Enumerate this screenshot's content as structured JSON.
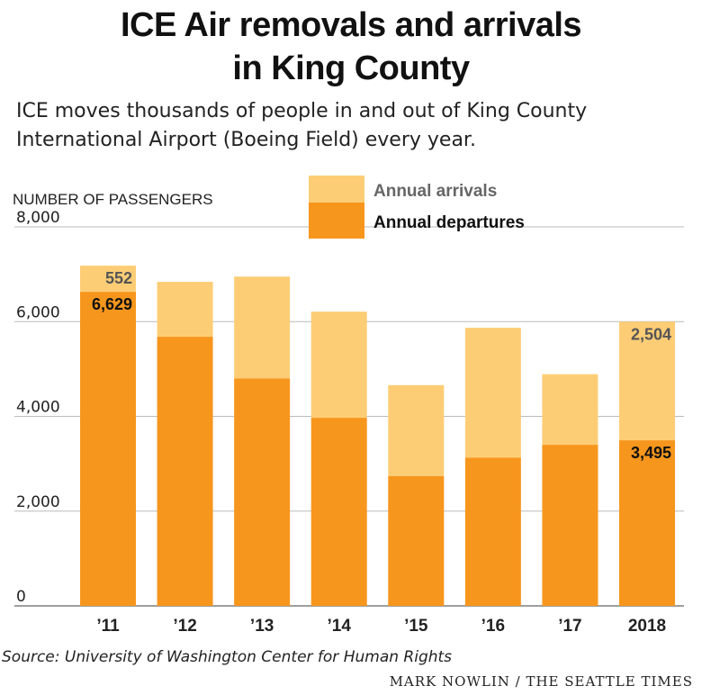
{
  "title_line1": "ICE Air removals and arrivals",
  "title_line2": "in King County",
  "subtitle_line1": "ICE moves thousands of people in and out of King County",
  "subtitle_line2": "International Airport (Boeing Field) every year.",
  "source": "Source: University of Washington Center for Human Rights",
  "credit": "MARK NOWLIN / THE SEATTLE TIMES",
  "colors": {
    "departures": "#F7961D",
    "arrivals": "#FDCD76",
    "grid": "#bbbbbb",
    "text": "#222222"
  },
  "chart_data": {
    "type": "bar",
    "stacked": true,
    "ylabel": "NUMBER OF PASSENGERS",
    "ylim": [
      0,
      8000
    ],
    "yticks": [
      0,
      2000,
      4000,
      6000,
      8000
    ],
    "ytick_labels": [
      "0",
      "2,000",
      "4,000",
      "6,000",
      "8,000"
    ],
    "categories": [
      "’11",
      "’12",
      "’13",
      "’14",
      "’15",
      "’16",
      "’17",
      "2018"
    ],
    "legend_position": "top-center",
    "series": [
      {
        "name": "Annual departures",
        "values": [
          6629,
          5680,
          4800,
          3970,
          2740,
          3130,
          3400,
          3495
        ]
      },
      {
        "name": "Annual arrivals",
        "values": [
          552,
          1160,
          2150,
          2240,
          1920,
          2740,
          1490,
          2504
        ]
      }
    ],
    "data_labels": [
      {
        "category_index": 0,
        "series": "Annual departures",
        "text": "6,629"
      },
      {
        "category_index": 0,
        "series": "Annual arrivals",
        "text": "552"
      },
      {
        "category_index": 7,
        "series": "Annual arrivals",
        "text": "2,504"
      },
      {
        "category_index": 7,
        "series": "Annual departures",
        "text": "3,495"
      }
    ]
  }
}
